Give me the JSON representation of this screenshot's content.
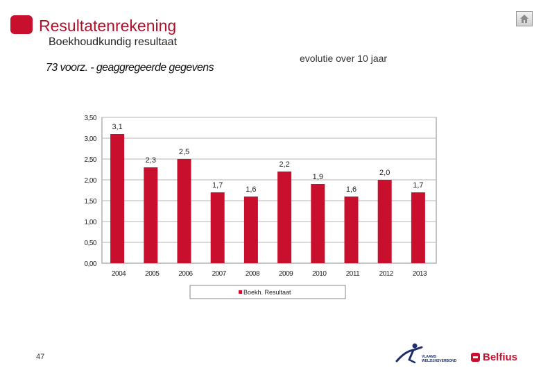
{
  "header": {
    "title": "Resultatenrekening",
    "subtitle": "Boekhoudkundig resultaat",
    "right_note": "evolutie over 10 jaar"
  },
  "home_icon": "home-icon",
  "chart_heading": "73 voorz. - geaggregeerde gegevens",
  "footer": {
    "page_number": "47",
    "logo_vvsg_line1": "VLAAMS",
    "logo_vvsg_line2": "WELZIJNSVERBOND",
    "logo_belfius": "Belfius"
  },
  "colors": {
    "bar": "#c8102e",
    "accent": "#b0102a"
  },
  "chart_data": {
    "type": "bar",
    "title": "73 voorz. - geaggregeerde gegevens",
    "categories": [
      "2004",
      "2005",
      "2006",
      "2007",
      "2008",
      "2009",
      "2010",
      "2011",
      "2012",
      "2013"
    ],
    "series": [
      {
        "name": "Boekh. Resultaat",
        "values": [
          3.1,
          2.3,
          2.5,
          1.7,
          1.6,
          2.2,
          1.9,
          1.6,
          2.0,
          1.7
        ],
        "labels": [
          "3,1",
          "2,3",
          "2,5",
          "1,7",
          "1,6",
          "2,2",
          "1,9",
          "1,6",
          "2,0",
          "1,7"
        ]
      }
    ],
    "yticks": [
      0,
      0.5,
      1.0,
      1.5,
      2.0,
      2.5,
      3.0,
      3.5
    ],
    "ytick_labels": [
      "0,00",
      "0,50",
      "1,00",
      "1,50",
      "2,00",
      "2,50",
      "3,00",
      "3,50"
    ],
    "ylim": [
      0,
      3.5
    ],
    "grid": true,
    "legend": "bottom",
    "xlabel": "",
    "ylabel": ""
  }
}
